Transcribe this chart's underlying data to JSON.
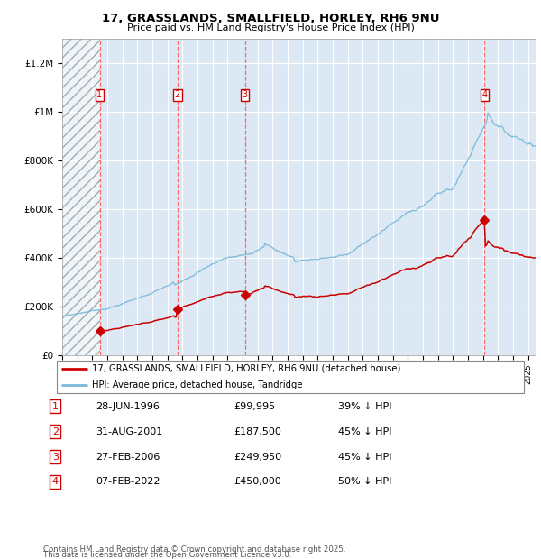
{
  "title_line1": "17, GRASSLANDS, SMALLFIELD, HORLEY, RH6 9NU",
  "title_line2": "Price paid vs. HM Land Registry's House Price Index (HPI)",
  "xlim_start": 1994.0,
  "xlim_end": 2025.5,
  "ylim": [
    0,
    1300000
  ],
  "yticks": [
    0,
    200000,
    400000,
    600000,
    800000,
    1000000,
    1200000
  ],
  "ytick_labels": [
    "£0",
    "£200K",
    "£400K",
    "£600K",
    "£800K",
    "£1M",
    "£1.2M"
  ],
  "purchases": [
    {
      "num": 1,
      "date_str": "28-JUN-1996",
      "date_x": 1996.49,
      "price": 99995,
      "price_str": "£99,995",
      "pct": "39%"
    },
    {
      "num": 2,
      "date_str": "31-AUG-2001",
      "date_x": 2001.66,
      "price": 187500,
      "price_str": "£187,500",
      "pct": "45%"
    },
    {
      "num": 3,
      "date_str": "27-FEB-2006",
      "date_x": 2006.16,
      "price": 249950,
      "price_str": "£249,950",
      "pct": "45%"
    },
    {
      "num": 4,
      "date_str": "07-FEB-2022",
      "date_x": 2022.1,
      "price": 450000,
      "price_str": "£450,000",
      "pct": "50%"
    }
  ],
  "hpi_color": "#7ab8d9",
  "price_color": "#cc0000",
  "bg_color": "#dce9f5",
  "vline_color": "#ff6666",
  "legend_label_price": "17, GRASSLANDS, SMALLFIELD, HORLEY, RH6 9NU (detached house)",
  "legend_label_hpi": "HPI: Average price, detached house, Tandridge",
  "footnote_line1": "Contains HM Land Registry data © Crown copyright and database right 2025.",
  "footnote_line2": "This data is licensed under the Open Government Licence v3.0."
}
